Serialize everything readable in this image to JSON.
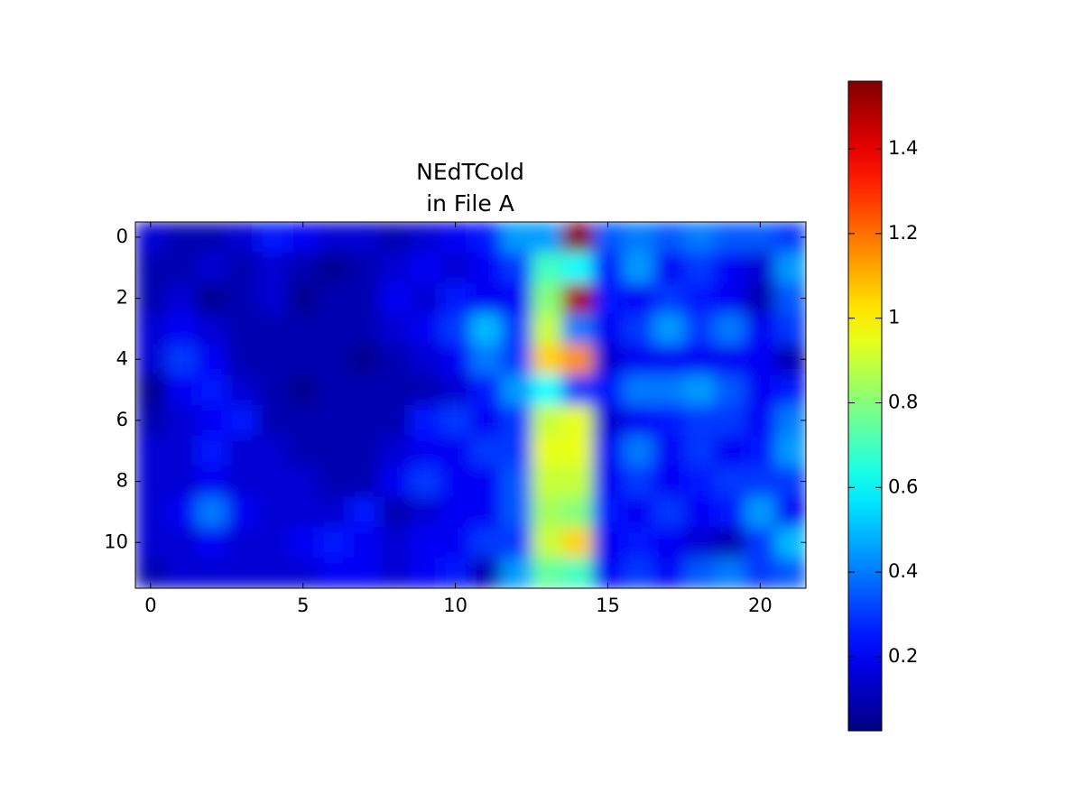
{
  "chart_data": {
    "type": "heatmap",
    "title": [
      "NEdTCold",
      "in File A"
    ],
    "colormap": "jet",
    "xlim": [
      -0.5,
      21.5
    ],
    "xticks": [
      0,
      5,
      10,
      15,
      20
    ],
    "ylim": [
      11.5,
      -0.5
    ],
    "yticks": [
      0,
      2,
      4,
      6,
      8,
      10
    ],
    "values": [
      [
        0.15,
        0.1,
        0.1,
        0.15,
        0.25,
        0.2,
        0.15,
        0.15,
        0.1,
        0.15,
        0.2,
        0.25,
        0.45,
        0.45,
        1.55,
        0.35,
        0.4,
        0.35,
        0.4,
        0.35,
        0.35,
        0.3
      ],
      [
        0.1,
        0.1,
        0.15,
        0.1,
        0.15,
        0.1,
        0.05,
        0.1,
        0.15,
        0.2,
        0.15,
        0.2,
        0.3,
        0.7,
        0.6,
        0.25,
        0.45,
        0.2,
        0.3,
        0.2,
        0.15,
        0.45
      ],
      [
        0.1,
        0.15,
        0.05,
        0.1,
        0.15,
        0.05,
        0.1,
        0.1,
        0.2,
        0.15,
        0.25,
        0.2,
        0.2,
        0.8,
        1.5,
        0.25,
        0.2,
        0.3,
        0.25,
        0.2,
        0.1,
        0.35
      ],
      [
        0.15,
        0.2,
        0.15,
        0.1,
        0.1,
        0.1,
        0.1,
        0.1,
        0.15,
        0.2,
        0.3,
        0.5,
        0.3,
        0.9,
        0.4,
        0.2,
        0.3,
        0.45,
        0.3,
        0.4,
        0.2,
        0.3
      ],
      [
        0.15,
        0.3,
        0.2,
        0.1,
        0.1,
        0.1,
        0.1,
        0.05,
        0.1,
        0.15,
        0.2,
        0.4,
        0.3,
        1.05,
        1.15,
        0.15,
        0.2,
        0.2,
        0.2,
        0.2,
        0.2,
        0.1
      ],
      [
        0.05,
        0.2,
        0.25,
        0.15,
        0.1,
        0.05,
        0.1,
        0.1,
        0.1,
        0.1,
        0.15,
        0.25,
        0.45,
        0.6,
        0.3,
        0.25,
        0.4,
        0.4,
        0.45,
        0.35,
        0.2,
        0.25
      ],
      [
        0.1,
        0.15,
        0.2,
        0.25,
        0.1,
        0.1,
        0.1,
        0.1,
        0.1,
        0.25,
        0.3,
        0.2,
        0.3,
        0.9,
        0.95,
        0.15,
        0.2,
        0.25,
        0.3,
        0.3,
        0.2,
        0.4
      ],
      [
        0.15,
        0.15,
        0.25,
        0.15,
        0.15,
        0.1,
        0.1,
        0.1,
        0.15,
        0.2,
        0.2,
        0.3,
        0.3,
        0.95,
        0.95,
        0.2,
        0.4,
        0.2,
        0.3,
        0.2,
        0.25,
        0.45
      ],
      [
        0.15,
        0.15,
        0.2,
        0.15,
        0.15,
        0.15,
        0.1,
        0.1,
        0.2,
        0.3,
        0.2,
        0.2,
        0.35,
        0.9,
        0.9,
        0.2,
        0.3,
        0.2,
        0.25,
        0.3,
        0.3,
        0.3
      ],
      [
        0.15,
        0.2,
        0.4,
        0.2,
        0.15,
        0.15,
        0.15,
        0.25,
        0.1,
        0.15,
        0.2,
        0.2,
        0.35,
        0.85,
        0.8,
        0.25,
        0.2,
        0.3,
        0.2,
        0.25,
        0.45,
        0.2
      ],
      [
        0.15,
        0.15,
        0.2,
        0.15,
        0.15,
        0.2,
        0.25,
        0.2,
        0.15,
        0.2,
        0.2,
        0.3,
        0.3,
        0.9,
        1.05,
        0.2,
        0.25,
        0.2,
        0.15,
        0.1,
        0.3,
        0.5
      ],
      [
        0.1,
        0.15,
        0.15,
        0.15,
        0.15,
        0.15,
        0.2,
        0.2,
        0.15,
        0.2,
        0.25,
        0.1,
        0.45,
        0.75,
        0.7,
        0.2,
        0.3,
        0.2,
        0.35,
        0.4,
        0.3,
        0.35
      ]
    ],
    "colorbar": {
      "lim": [
        0.025,
        1.56
      ],
      "ticks": [
        0.2,
        0.4,
        0.6,
        0.8,
        1,
        1.2,
        1.4
      ]
    }
  }
}
